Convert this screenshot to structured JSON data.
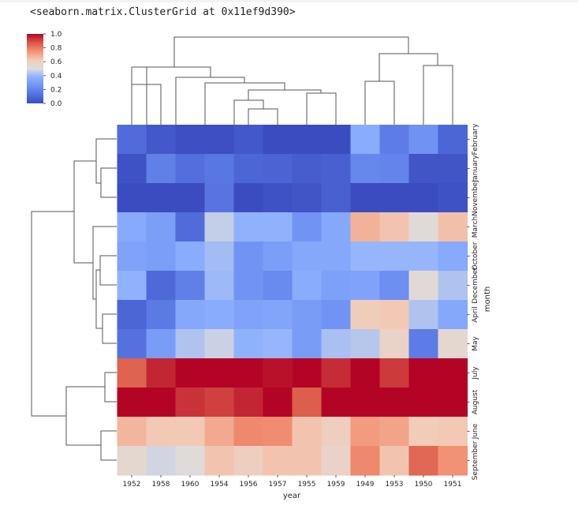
{
  "output_text": "<seaborn.matrix.ClusterGrid at 0x11ef9d390>",
  "chart_data": {
    "type": "heatmap",
    "title": "",
    "xlabel": "year",
    "ylabel": "month",
    "x_tick_labels": [
      "1952",
      "1958",
      "1960",
      "1954",
      "1956",
      "1957",
      "1955",
      "1959",
      "1949",
      "1953",
      "1950",
      "1951"
    ],
    "y_tick_labels": [
      "February",
      "January",
      "November",
      "March",
      "October",
      "December",
      "April",
      "May",
      "July",
      "August",
      "June",
      "September"
    ],
    "colormap": "coolwarm",
    "colorbar": {
      "ticks": [
        "1.0",
        "0.8",
        "0.6",
        "0.4",
        "0.2",
        "0.0"
      ],
      "range": [
        0,
        1
      ]
    },
    "values": [
      [
        0.11,
        0.04,
        0.01,
        0.01,
        0.04,
        0.0,
        0.0,
        0.0,
        0.36,
        0.17,
        0.25,
        0.09
      ],
      [
        0.02,
        0.18,
        0.12,
        0.15,
        0.09,
        0.08,
        0.06,
        0.07,
        0.21,
        0.2,
        0.03,
        0.03
      ],
      [
        0.0,
        0.0,
        0.0,
        0.14,
        0.0,
        0.02,
        0.03,
        0.07,
        0.0,
        0.0,
        0.0,
        0.02
      ],
      [
        0.35,
        0.3,
        0.11,
        0.46,
        0.38,
        0.38,
        0.26,
        0.34,
        0.68,
        0.64,
        0.52,
        0.65
      ],
      [
        0.32,
        0.3,
        0.36,
        0.41,
        0.26,
        0.3,
        0.34,
        0.34,
        0.39,
        0.39,
        0.39,
        0.35
      ],
      [
        0.38,
        0.1,
        0.18,
        0.4,
        0.26,
        0.22,
        0.36,
        0.31,
        0.32,
        0.24,
        0.52,
        0.43
      ],
      [
        0.09,
        0.16,
        0.34,
        0.36,
        0.32,
        0.33,
        0.29,
        0.26,
        0.61,
        0.63,
        0.43,
        0.34
      ],
      [
        0.13,
        0.29,
        0.43,
        0.47,
        0.38,
        0.39,
        0.29,
        0.42,
        0.44,
        0.57,
        0.17,
        0.54
      ],
      [
        0.85,
        0.95,
        1.0,
        1.0,
        1.0,
        0.98,
        1.0,
        0.94,
        1.0,
        0.92,
        1.0,
        1.0
      ],
      [
        1.0,
        1.0,
        0.93,
        0.91,
        0.95,
        1.0,
        0.86,
        1.0,
        1.0,
        1.0,
        1.0,
        1.0
      ],
      [
        0.67,
        0.63,
        0.63,
        0.7,
        0.77,
        0.76,
        0.64,
        0.6,
        0.73,
        0.71,
        0.62,
        0.63
      ],
      [
        0.54,
        0.48,
        0.51,
        0.64,
        0.6,
        0.64,
        0.64,
        0.57,
        0.77,
        0.64,
        0.84,
        0.75
      ]
    ]
  }
}
